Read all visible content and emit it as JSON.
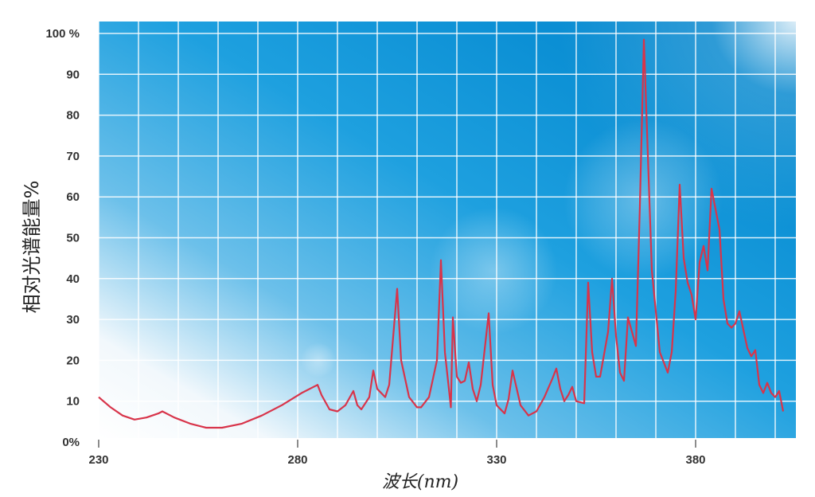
{
  "chart_data": {
    "type": "line",
    "xlabel": "波长(nm)",
    "ylabel": "相对光谱能量%",
    "xlim": [
      230,
      402
    ],
    "ylim": [
      0,
      100
    ],
    "x_ticks": [
      "230",
      "280",
      "330",
      "380"
    ],
    "y_ticks": [
      "0%",
      "10",
      "20",
      "30",
      "40",
      "50",
      "60",
      "70",
      "80",
      "90",
      "100 %"
    ],
    "grid": true,
    "background": {
      "gradient_from": "#ffffff",
      "gradient_to": "#0a8fd6"
    },
    "series": [
      {
        "color": "#d8344a",
        "x": [
          230,
          233,
          236,
          239,
          242,
          245,
          246,
          249,
          253,
          257,
          261,
          266,
          271,
          276,
          281,
          285,
          286,
          288,
          290,
          292,
          294,
          295,
          296,
          298,
          299,
          300,
          302,
          303,
          305,
          306,
          308,
          310,
          311,
          313,
          315,
          316,
          317,
          318,
          318.5,
          319,
          320,
          321,
          322,
          323,
          324,
          325,
          326,
          328,
          329,
          330,
          332,
          333,
          334,
          336,
          338,
          340,
          342,
          344,
          345,
          346,
          347,
          348,
          349,
          350,
          352,
          353,
          354,
          355,
          356,
          358,
          359,
          360,
          361,
          362,
          363,
          365,
          366,
          367,
          369,
          371,
          373,
          374,
          375,
          376,
          377,
          378,
          379,
          380,
          381,
          382,
          383,
          384,
          386,
          387,
          388,
          389,
          390,
          391,
          393,
          394,
          395,
          396,
          397,
          398,
          399,
          400,
          401,
          402
        ],
        "y": [
          11,
          8.5,
          6.5,
          5.5,
          6,
          7,
          7.5,
          6,
          4.5,
          3.5,
          3.5,
          4.5,
          6.5,
          9,
          12,
          14,
          11.5,
          8,
          7.5,
          9,
          12.5,
          9,
          8,
          11,
          17.5,
          13,
          11,
          14,
          37.5,
          20,
          11,
          8.5,
          8.5,
          11,
          20,
          44.5,
          22,
          13,
          8.5,
          30.5,
          16,
          14.5,
          15,
          19.5,
          13,
          10,
          14,
          31.5,
          14,
          9,
          7,
          10.5,
          17.5,
          9,
          6.5,
          7.5,
          11,
          15.5,
          18,
          13,
          10,
          11.5,
          13.5,
          10,
          9.5,
          39,
          22,
          16,
          16,
          27,
          40,
          26,
          17,
          15,
          30.5,
          23.5,
          58,
          98.5,
          42,
          22,
          17,
          22,
          37,
          63,
          45,
          39,
          36,
          30,
          44,
          48,
          42,
          62,
          52,
          35,
          29,
          28,
          29,
          32,
          23,
          21,
          22.5,
          14,
          12,
          14.5,
          12,
          11,
          12.5,
          7.5
        ]
      }
    ]
  }
}
